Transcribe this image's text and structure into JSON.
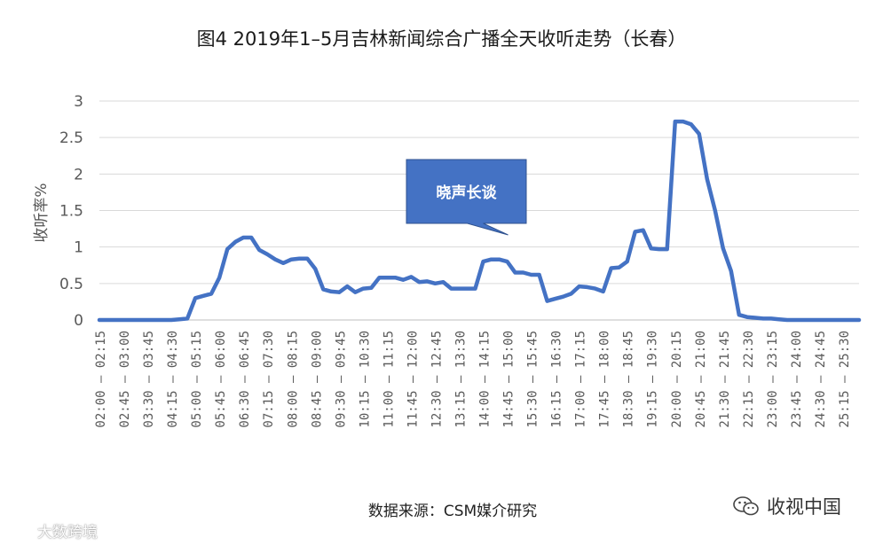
{
  "chart_data": {
    "type": "line",
    "title": "图4  2019年1–5月吉林新闻综合广播全天收听走势（长春）",
    "ylabel": "收听率%",
    "xlabel": "",
    "ylim": [
      0,
      3
    ],
    "yticks": [
      "0",
      "0.5",
      "1",
      "1.5",
      "2",
      "2.5",
      "3"
    ],
    "grid": true,
    "line_color": "#4472C4",
    "categories": [
      "02:00 – 02:15",
      "02:15 – 02:30",
      "02:30 – 02:45",
      "02:45 – 03:00",
      "03:00 – 03:15",
      "03:15 – 03:30",
      "03:30 – 03:45",
      "03:45 – 04:00",
      "04:00 – 04:15",
      "04:15 – 04:30",
      "04:30 – 04:45",
      "04:45 – 05:00",
      "05:00 – 05:15",
      "05:15 – 05:30",
      "05:30 – 05:45",
      "05:45 – 06:00",
      "06:00 – 06:15",
      "06:15 – 06:30",
      "06:30 – 06:45",
      "06:45 – 07:00",
      "07:00 – 07:15",
      "07:15 – 07:30",
      "07:30 – 07:45",
      "07:45 – 08:00",
      "08:00 – 08:15",
      "08:15 – 08:30",
      "08:30 – 08:45",
      "08:45 – 09:00",
      "09:00 – 09:15",
      "09:15 – 09:30",
      "09:30 – 09:45",
      "09:45 – 10:00",
      "10:00 – 10:15",
      "10:15 – 10:30",
      "10:30 – 10:45",
      "10:45 – 11:00",
      "11:00 – 11:15",
      "11:15 – 11:30",
      "11:30 – 11:45",
      "11:45 – 12:00",
      "12:00 – 12:15",
      "12:15 – 12:30",
      "12:30 – 12:45",
      "12:45 – 13:00",
      "13:00 – 13:15",
      "13:15 – 13:30",
      "13:30 – 13:45",
      "13:45 – 14:00",
      "14:00 – 14:15",
      "14:15 – 14:30",
      "14:30 – 14:45",
      "14:45 – 15:00",
      "15:00 – 15:15",
      "15:15 – 15:30",
      "15:30 – 15:45",
      "15:45 – 16:00",
      "16:00 – 16:15",
      "16:15 – 16:30",
      "16:30 – 16:45",
      "16:45 – 17:00",
      "17:00 – 17:15",
      "17:15 – 17:30",
      "17:30 – 17:45",
      "17:45 – 18:00",
      "18:00 – 18:15",
      "18:15 – 18:30",
      "18:30 – 18:45",
      "18:45 – 19:00",
      "19:00 – 19:15",
      "19:15 – 19:30",
      "19:30 – 19:45",
      "19:45 – 20:00",
      "20:00 – 20:15",
      "20:15 – 20:30",
      "20:30 – 20:45",
      "20:45 – 21:00",
      "21:00 – 21:15",
      "21:15 – 21:30",
      "21:30 – 21:45",
      "21:45 – 22:00",
      "22:00 – 22:15",
      "22:15 – 22:30",
      "22:30 – 22:45",
      "22:45 – 23:00",
      "23:00 – 23:15",
      "23:15 – 23:30",
      "23:30 – 23:45",
      "23:45 – 24:00",
      "24:00 – 24:15",
      "24:15 – 24:30",
      "24:30 – 24:45",
      "24:45 – 25:00",
      "25:00 – 25:15",
      "25:15 – 25:30",
      "25:30 – 25:45",
      "25:45 – 26:00"
    ],
    "tick_labels": [
      "02:00 – 02:15",
      "02:45 – 03:00",
      "03:30 – 03:45",
      "04:15 – 04:30",
      "05:00 – 05:15",
      "05:45 – 06:00",
      "06:30 – 06:45",
      "07:15 – 07:30",
      "08:00 – 08:15",
      "08:45 – 09:00",
      "09:30 – 09:45",
      "10:15 – 10:30",
      "11:00 – 11:15",
      "11:45 – 12:00",
      "12:30 – 12:45",
      "13:15 – 13:30",
      "14:00 – 14:15",
      "14:45 – 15:00",
      "15:30 – 15:45",
      "16:15 – 16:30",
      "17:00 – 17:15",
      "17:45 – 18:00",
      "18:30 – 18:45",
      "19:15 – 19:30",
      "20:00 – 20:15",
      "20:45 – 21:00",
      "21:30 – 21:45",
      "22:15 – 22:30",
      "23:00 – 23:15",
      "23:45 – 24:00",
      "24:30 – 24:45",
      "25:15 – 25:30"
    ],
    "series": [
      {
        "values": [
          0,
          0,
          0,
          0,
          0,
          0,
          0,
          0,
          0,
          0,
          0.01,
          0.02,
          0.3,
          0.33,
          0.36,
          0.58,
          0.97,
          1.07,
          1.13,
          1.13,
          0.96,
          0.9,
          0.83,
          0.78,
          0.83,
          0.84,
          0.84,
          0.7,
          0.42,
          0.39,
          0.38,
          0.46,
          0.38,
          0.43,
          0.44,
          0.58,
          0.58,
          0.58,
          0.55,
          0.59,
          0.52,
          0.53,
          0.5,
          0.52,
          0.43,
          0.43,
          0.43,
          0.43,
          0.8,
          0.83,
          0.83,
          0.8,
          0.65,
          0.65,
          0.62,
          0.62,
          0.26,
          0.29,
          0.32,
          0.36,
          0.46,
          0.45,
          0.43,
          0.39,
          0.71,
          0.72,
          0.8,
          1.21,
          1.23,
          0.98,
          0.97,
          0.97,
          2.72,
          2.72,
          2.68,
          2.55,
          1.93,
          1.5,
          0.98,
          0.67,
          0.07,
          0.04,
          0.03,
          0.02,
          0.02,
          0.01,
          0,
          0,
          0,
          0,
          0,
          0,
          0,
          0,
          0,
          0
        ]
      }
    ],
    "annotations": [
      {
        "text": "晓声长谈",
        "pointer_category": "14:30 – 14:45",
        "fill": "#4472C4"
      }
    ]
  },
  "footer": {
    "source": "数据来源：CSM媒介研究",
    "wechat_brand": "收视中国",
    "watermark": "大数跨境"
  },
  "icons": {
    "wechat": "wechat-icon",
    "watermark_logo": "watermark-logo-icon"
  }
}
